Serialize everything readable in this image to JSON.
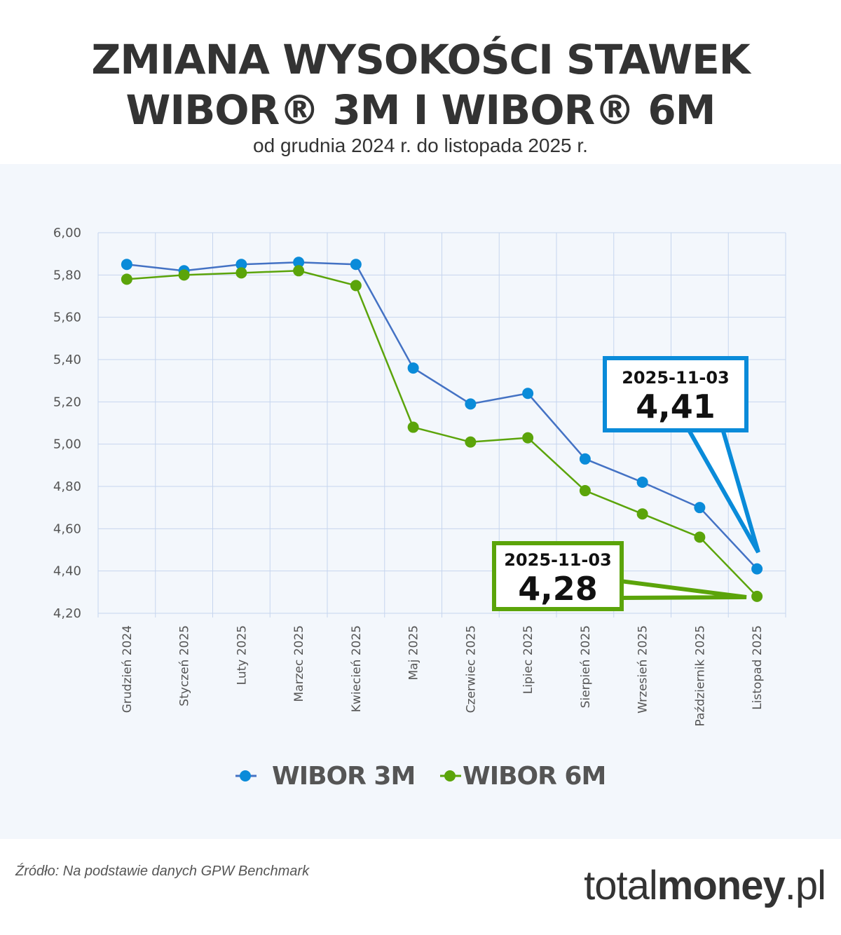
{
  "header": {
    "title_line1": "ZMIANA WYSOKOŚCI STAWEK",
    "title_line2": "WIBOR® 3M I WIBOR® 6M",
    "subtitle": "od grudnia 2024 r. do listopada 2025 r."
  },
  "colors": {
    "background": "#F3F7FC",
    "grid": "#C6D5EE",
    "wibor3m_line": "#4472C4",
    "wibor3m_marker": "#0A8BD9",
    "wibor6m": "#5BA40A",
    "text": "#333333"
  },
  "chart_data": {
    "type": "line",
    "title": "ZMIANA WYSOKOŚCI STAWEK WIBOR® 3M I WIBOR® 6M",
    "subtitle": "od grudnia 2024 r. do listopada 2025 r.",
    "xlabel": "",
    "ylabel": "",
    "ylim": [
      4.2,
      6.0
    ],
    "yticks": [
      "6,00",
      "5,80",
      "5,60",
      "5,40",
      "5,20",
      "5,00",
      "4,80",
      "4,60",
      "4,40",
      "4,20"
    ],
    "grid": true,
    "legend_position": "bottom",
    "categories": [
      "Grudzień 2024",
      "Styczeń 2025",
      "Luty 2025",
      "Marzec 2025",
      "Kwiecień 2025",
      "Maj 2025",
      "Czerwiec 2025",
      "Lipiec 2025",
      "Sierpień 2025",
      "Wrzesień 2025",
      "Październik 2025",
      "Listopad 2025"
    ],
    "series": [
      {
        "name": "WIBOR 3M",
        "values": [
          5.85,
          5.82,
          5.85,
          5.86,
          5.85,
          5.36,
          5.19,
          5.24,
          4.93,
          4.82,
          4.7,
          4.41
        ]
      },
      {
        "name": "WIBOR 6M",
        "values": [
          5.78,
          5.8,
          5.81,
          5.82,
          5.75,
          5.08,
          5.01,
          5.03,
          4.78,
          4.67,
          4.56,
          4.28
        ]
      }
    ],
    "annotations": [
      {
        "series": "WIBOR 3M",
        "date": "2025-11-03",
        "value": "4,41"
      },
      {
        "series": "WIBOR 6M",
        "date": "2025-11-03",
        "value": "4,28"
      }
    ]
  },
  "legend": {
    "items": [
      {
        "label": "WIBOR 3M"
      },
      {
        "label": "WIBOR 6M"
      }
    ]
  },
  "footer": {
    "source": "Źródło: Na podstawie danych GPW Benchmark",
    "brand_light1": "total",
    "brand_bold": "money",
    "brand_light2": ".pl"
  }
}
